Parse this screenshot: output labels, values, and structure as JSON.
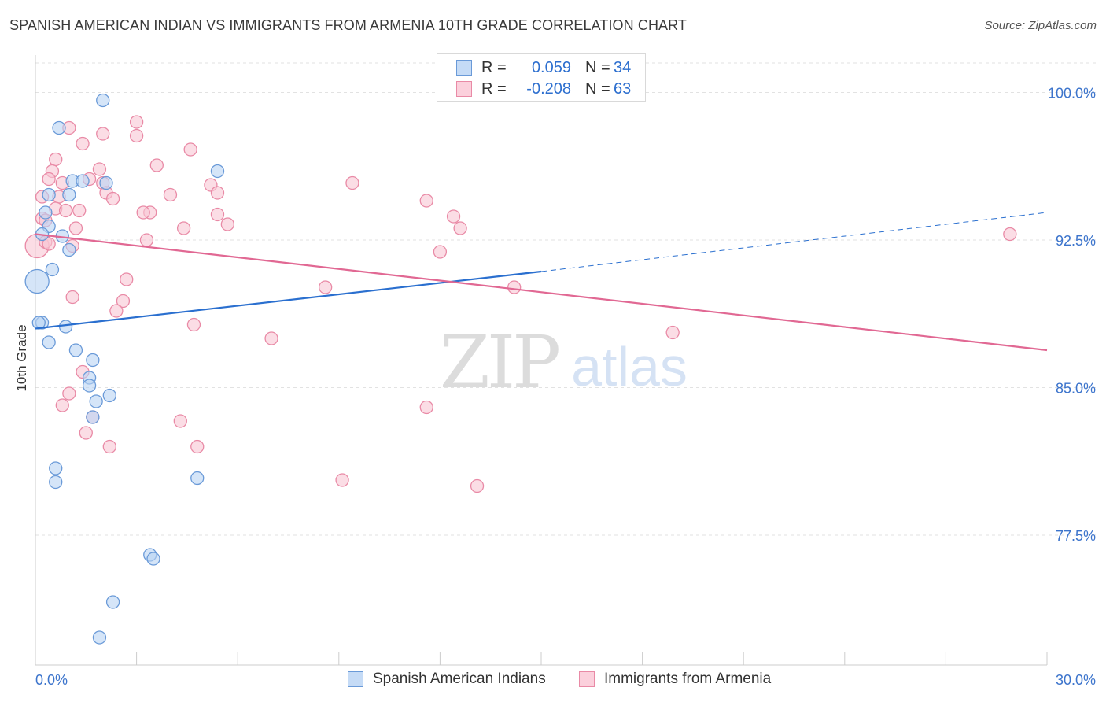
{
  "title": "SPANISH AMERICAN INDIAN VS IMMIGRANTS FROM ARMENIA 10TH GRADE CORRELATION CHART",
  "source": "Source: ZipAtlas.com",
  "watermark": {
    "zip": "ZIP",
    "atlas": "atlas"
  },
  "colors": {
    "blue_fill": "#b9d3f3",
    "blue_stroke": "#6a9ad8",
    "blue_line": "#2a6fcf",
    "pink_fill": "#f9c6d4",
    "pink_stroke": "#e98aa6",
    "pink_line": "#e16893",
    "axis_text": "#3c74cc",
    "grid": "#e2e2e2"
  },
  "legend_top": {
    "rows": [
      {
        "r_label": "R =",
        "r_value": "0.059",
        "n_label": "N =",
        "n_value": "34"
      },
      {
        "r_label": "R =",
        "r_value": "-0.208",
        "n_label": "N =",
        "n_value": "63"
      }
    ]
  },
  "legend_bottom": [
    "Spanish American Indians",
    "Immigrants from Armenia"
  ],
  "chart_data": {
    "type": "scatter",
    "title": "SPANISH AMERICAN INDIAN VS IMMIGRANTS FROM ARMENIA 10TH GRADE CORRELATION CHART",
    "xlabel": "",
    "ylabel": "10th Grade",
    "xlim": [
      0,
      30
    ],
    "ylim": [
      70.9,
      101.9
    ],
    "x_tick_labels": [
      "0.0%",
      "30.0%"
    ],
    "y_ticks": [
      77.5,
      85.0,
      92.5,
      100.0
    ],
    "y_tick_labels": [
      "77.5%",
      "85.0%",
      "92.5%",
      "100.0%"
    ],
    "grid": true,
    "series": [
      {
        "name": "Spanish American Indians",
        "r": 0.059,
        "n": 34,
        "trend": {
          "x0": 0.0,
          "y0": 88.0,
          "x1": 15.0,
          "y1": 90.9,
          "dash_to_x": 30.0,
          "dash_to_y": 93.9
        },
        "points": [
          [
            2.0,
            99.6,
            8
          ],
          [
            0.7,
            98.2,
            8
          ],
          [
            1.1,
            95.5,
            8
          ],
          [
            1.4,
            95.5,
            8
          ],
          [
            2.1,
            95.4,
            8
          ],
          [
            0.4,
            94.8,
            8
          ],
          [
            1.0,
            94.8,
            8
          ],
          [
            5.4,
            96.0,
            8
          ],
          [
            0.3,
            93.9,
            8
          ],
          [
            0.4,
            93.2,
            8
          ],
          [
            0.2,
            92.8,
            8
          ],
          [
            0.8,
            92.7,
            8
          ],
          [
            1.0,
            92.0,
            8
          ],
          [
            0.5,
            91.0,
            8
          ],
          [
            0.05,
            90.4,
            15
          ],
          [
            0.2,
            88.3,
            8
          ],
          [
            0.9,
            88.1,
            8
          ],
          [
            0.4,
            87.3,
            8
          ],
          [
            1.2,
            86.9,
            8
          ],
          [
            1.7,
            86.4,
            8
          ],
          [
            1.6,
            85.5,
            8
          ],
          [
            1.6,
            85.1,
            8
          ],
          [
            2.2,
            84.6,
            8
          ],
          [
            1.8,
            84.3,
            8
          ],
          [
            1.7,
            83.5,
            8
          ],
          [
            0.6,
            80.9,
            8
          ],
          [
            0.6,
            80.2,
            8
          ],
          [
            4.8,
            80.4,
            8
          ],
          [
            3.4,
            76.5,
            8
          ],
          [
            3.5,
            76.3,
            8
          ],
          [
            2.3,
            74.1,
            8
          ],
          [
            1.9,
            72.3,
            8
          ],
          [
            0.1,
            88.3,
            8
          ],
          [
            12.5,
            100.0,
            8
          ]
        ]
      },
      {
        "name": "Immigrants from Armenia",
        "r": -0.208,
        "n": 63,
        "trend": {
          "x0": 0.0,
          "y0": 92.8,
          "x1": 30.0,
          "y1": 86.9
        },
        "points": [
          [
            0.05,
            92.2,
            15
          ],
          [
            1.0,
            98.2,
            8
          ],
          [
            3.0,
            98.5,
            8
          ],
          [
            2.0,
            97.9,
            8
          ],
          [
            3.0,
            97.8,
            8
          ],
          [
            1.4,
            97.4,
            8
          ],
          [
            4.6,
            97.1,
            8
          ],
          [
            0.6,
            96.6,
            8
          ],
          [
            3.6,
            96.3,
            8
          ],
          [
            1.9,
            96.1,
            8
          ],
          [
            0.5,
            96.0,
            8
          ],
          [
            0.4,
            95.6,
            8
          ],
          [
            0.8,
            95.4,
            8
          ],
          [
            2.0,
            95.4,
            8
          ],
          [
            5.2,
            95.3,
            8
          ],
          [
            9.4,
            95.4,
            8
          ],
          [
            2.1,
            94.9,
            8
          ],
          [
            5.4,
            94.9,
            8
          ],
          [
            4.0,
            94.8,
            8
          ],
          [
            0.2,
            94.7,
            8
          ],
          [
            0.7,
            94.7,
            8
          ],
          [
            2.3,
            94.6,
            8
          ],
          [
            11.6,
            94.5,
            8
          ],
          [
            0.6,
            94.1,
            8
          ],
          [
            0.9,
            94.0,
            8
          ],
          [
            1.3,
            94.0,
            8
          ],
          [
            3.4,
            93.9,
            8
          ],
          [
            5.4,
            93.8,
            8
          ],
          [
            12.4,
            93.7,
            8
          ],
          [
            0.2,
            93.6,
            8
          ],
          [
            5.7,
            93.3,
            8
          ],
          [
            4.4,
            93.1,
            8
          ],
          [
            12.6,
            93.1,
            8
          ],
          [
            1.2,
            93.1,
            8
          ],
          [
            0.3,
            92.4,
            8
          ],
          [
            0.4,
            92.3,
            8
          ],
          [
            3.3,
            92.5,
            8
          ],
          [
            1.1,
            92.2,
            8
          ],
          [
            12.0,
            91.9,
            8
          ],
          [
            28.9,
            92.8,
            8
          ],
          [
            2.7,
            90.5,
            8
          ],
          [
            8.6,
            90.1,
            8
          ],
          [
            14.2,
            90.1,
            8
          ],
          [
            1.1,
            89.6,
            8
          ],
          [
            2.6,
            89.4,
            8
          ],
          [
            2.4,
            88.9,
            8
          ],
          [
            4.7,
            88.2,
            8
          ],
          [
            7.0,
            87.5,
            8
          ],
          [
            18.9,
            87.8,
            8
          ],
          [
            1.4,
            85.8,
            8
          ],
          [
            1.0,
            84.7,
            8
          ],
          [
            0.8,
            84.1,
            8
          ],
          [
            11.6,
            84.0,
            8
          ],
          [
            1.7,
            83.5,
            8
          ],
          [
            4.3,
            83.3,
            8
          ],
          [
            1.5,
            82.7,
            8
          ],
          [
            2.2,
            82.0,
            8
          ],
          [
            4.8,
            82.0,
            8
          ],
          [
            9.1,
            80.3,
            8
          ],
          [
            13.1,
            80.0,
            8
          ],
          [
            0.3,
            93.5,
            8
          ],
          [
            1.6,
            95.6,
            8
          ],
          [
            3.2,
            93.9,
            8
          ]
        ]
      }
    ]
  }
}
